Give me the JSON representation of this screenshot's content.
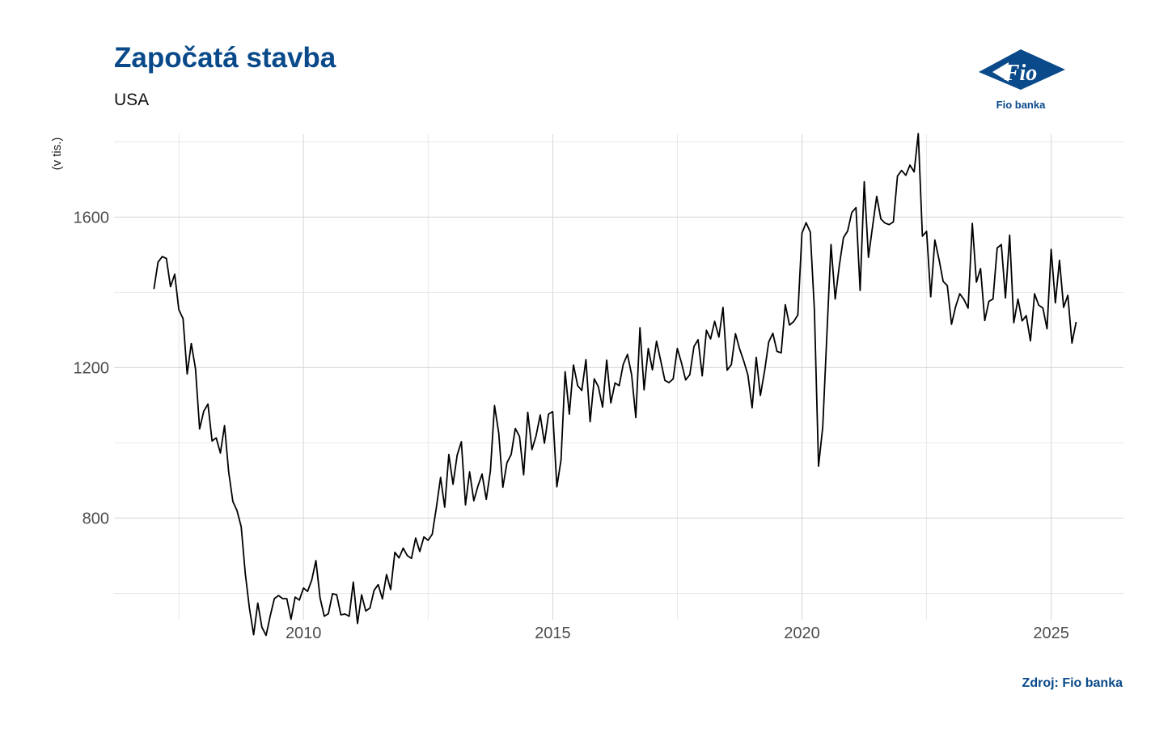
{
  "header": {
    "title": "Započatá stavba",
    "subtitle": "USA"
  },
  "logo": {
    "mark_text": "Fio",
    "caption": "Fio banka",
    "color": "#0a4a8a"
  },
  "footer": {
    "source": "Zdroj: Fio banka"
  },
  "chart_data": {
    "type": "line",
    "title": "Započatá stavba",
    "subtitle": "USA",
    "xlabel": "",
    "ylabel": "(v tis.)",
    "xlim": [
      2006.2,
      2026.45
    ],
    "ylim": [
      530,
      1820
    ],
    "x_ticks": [
      2010,
      2015,
      2020,
      2025
    ],
    "y_ticks": [
      800,
      1200,
      1600
    ],
    "grid": true,
    "line_color": "#000000",
    "series": [
      {
        "x_start": 2007.0,
        "x_step": 0.08333333,
        "values": [
          1409,
          1480,
          1495,
          1490,
          1415,
          1448,
          1354,
          1330,
          1183,
          1264,
          1197,
          1037,
          1084,
          1103,
          1005,
          1013,
          973,
          1046,
          923,
          844,
          820,
          777,
          652,
          560,
          490,
          574,
          510,
          488,
          540,
          586,
          594,
          586,
          586,
          531,
          590,
          582,
          614,
          605,
          636,
          687,
          588,
          539,
          546,
          599,
          596,
          543,
          545,
          539,
          630,
          520,
          596,
          553,
          561,
          608,
          623,
          585,
          650,
          610,
          709,
          694,
          720,
          700,
          693,
          747,
          711,
          750,
          741,
          757,
          828,
          908,
          829,
          969,
          890,
          967,
          1003,
          835,
          923,
          846,
          885,
          917,
          850,
          925,
          1099,
          1026,
          882,
          947,
          969,
          1038,
          1017,
          915,
          1081,
          982,
          1019,
          1074,
          999,
          1076,
          1083,
          883,
          954,
          1189,
          1076,
          1207,
          1152,
          1139,
          1221,
          1056,
          1170,
          1149,
          1095,
          1220,
          1106,
          1159,
          1152,
          1209,
          1235,
          1181,
          1067,
          1306,
          1141,
          1251,
          1194,
          1270,
          1218,
          1166,
          1160,
          1170,
          1251,
          1212,
          1167,
          1181,
          1256,
          1274,
          1178,
          1299,
          1276,
          1323,
          1281,
          1360,
          1193,
          1208,
          1290,
          1249,
          1217,
          1180,
          1093,
          1227,
          1126,
          1191,
          1268,
          1291,
          1243,
          1239,
          1367,
          1313,
          1322,
          1340,
          1557,
          1585,
          1560,
          1352,
          938,
          1042,
          1287,
          1527,
          1382,
          1471,
          1545,
          1563,
          1612,
          1625,
          1405,
          1694,
          1493,
          1575,
          1655,
          1595,
          1584,
          1580,
          1587,
          1709,
          1724,
          1711,
          1738,
          1720,
          1822,
          1549,
          1562,
          1388,
          1539,
          1487,
          1429,
          1418,
          1315,
          1362,
          1396,
          1381,
          1358,
          1583,
          1427,
          1463,
          1325,
          1376,
          1382,
          1518,
          1527,
          1385,
          1552,
          1319,
          1382,
          1324,
          1338,
          1271,
          1396,
          1366,
          1358,
          1303,
          1514,
          1372,
          1485,
          1360,
          1392,
          1265,
          1321
        ]
      }
    ]
  }
}
